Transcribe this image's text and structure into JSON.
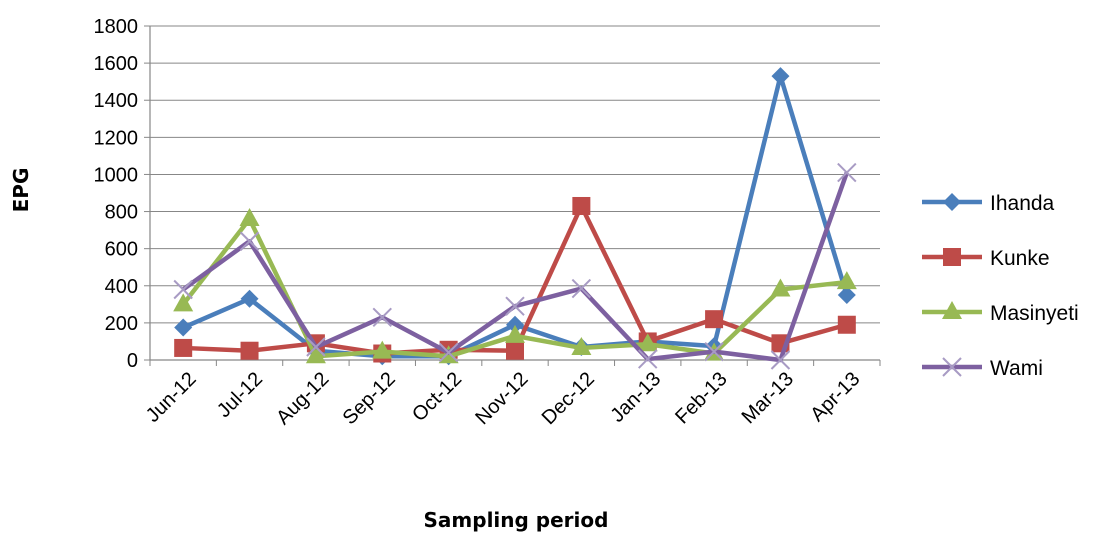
{
  "chart_data": {
    "type": "line",
    "title": "",
    "xlabel": "Sampling period",
    "ylabel": "EPG",
    "ylim": [
      0,
      1800
    ],
    "yticks": [
      0,
      200,
      400,
      600,
      800,
      1000,
      1200,
      1400,
      1600,
      1800
    ],
    "categories": [
      "Jun-12",
      "Jul-12",
      "Aug-12",
      "Sep-12",
      "Oct-12",
      "Nov-12",
      "Dec-12",
      "Jan-13",
      "Feb-13",
      "Mar-13",
      "Apr-13"
    ],
    "grid": true,
    "legend_position": "right",
    "series": [
      {
        "name": "Ihanda",
        "color": "#4a7ebb",
        "marker": "diamond",
        "values": [
          175,
          330,
          50,
          20,
          20,
          190,
          70,
          100,
          75,
          1530,
          350
        ]
      },
      {
        "name": "Kunke",
        "color": "#be4b48",
        "marker": "square",
        "values": [
          65,
          50,
          90,
          35,
          55,
          50,
          830,
          100,
          220,
          90,
          190
        ]
      },
      {
        "name": "Masinyeti",
        "color": "#98b954",
        "marker": "triangle",
        "values": [
          300,
          760,
          20,
          45,
          20,
          130,
          65,
          85,
          35,
          380,
          420
        ]
      },
      {
        "name": "Wami",
        "color": "#7d60a0",
        "marker": "cross",
        "values": [
          380,
          640,
          70,
          230,
          40,
          290,
          385,
          5,
          45,
          0,
          1010
        ]
      }
    ]
  }
}
